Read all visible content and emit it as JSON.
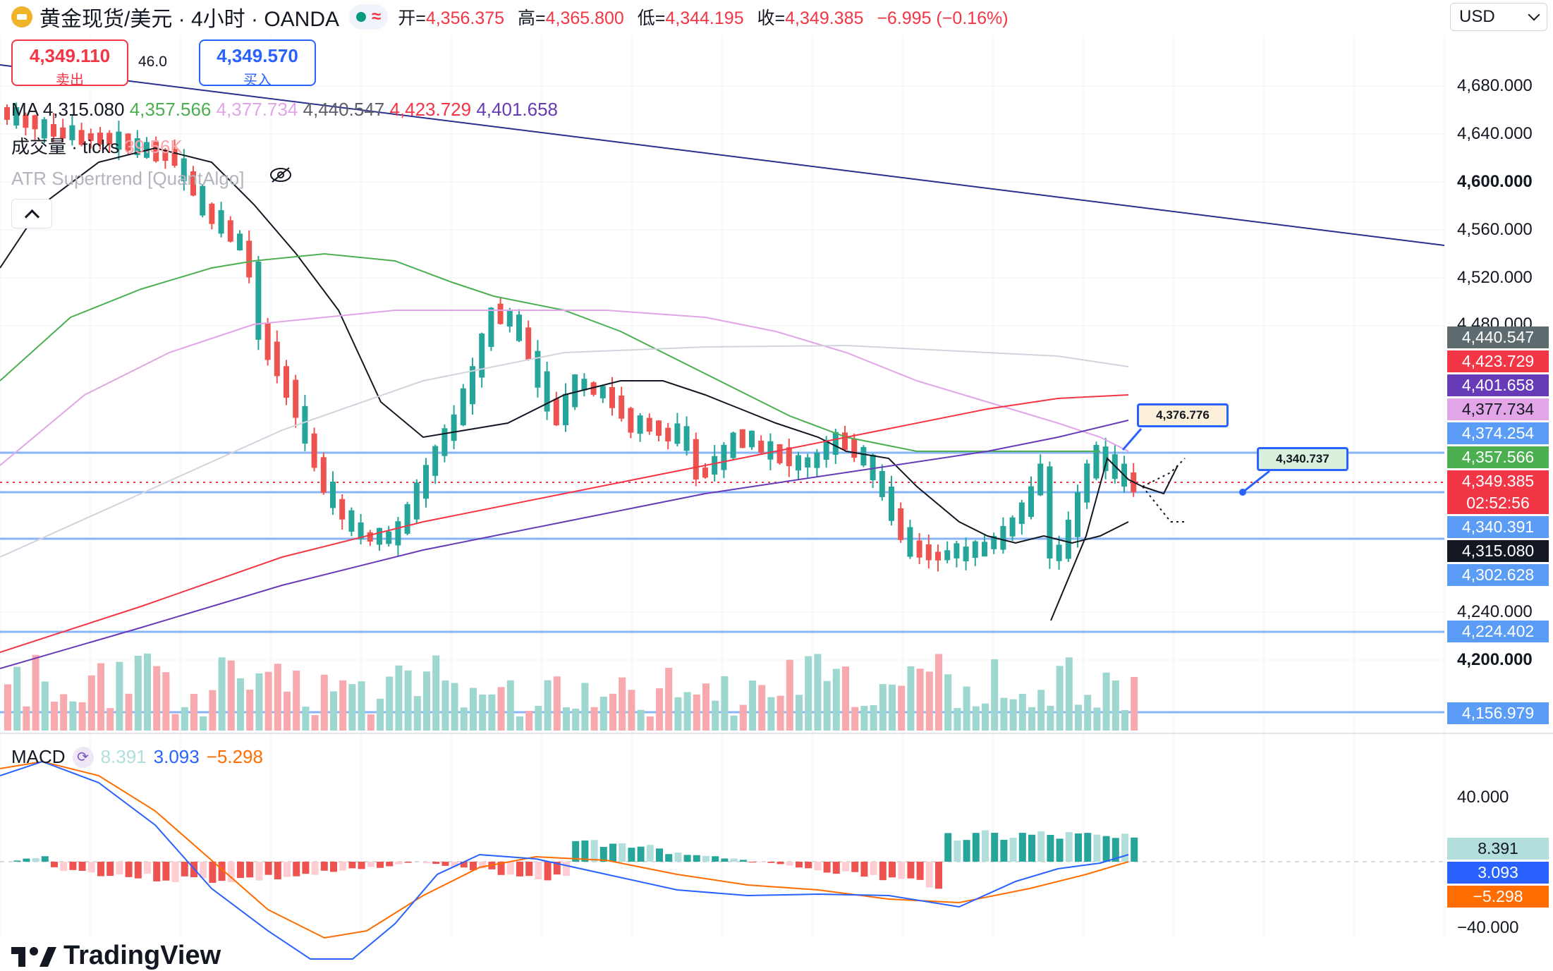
{
  "header": {
    "title": "黄金现货/美元 · 4小时 · OANDA",
    "ohlc": [
      {
        "k": "开=",
        "v": "4,356.375"
      },
      {
        "k": "高=",
        "v": "4,365.800"
      },
      {
        "k": "低=",
        "v": "4,344.195"
      },
      {
        "k": "收=",
        "v": "4,349.385"
      }
    ],
    "change": "−6.995 (−0.16%)"
  },
  "currency": "USD",
  "trade": {
    "sell_price": "4,349.110",
    "sell_label": "卖出",
    "spread": "46.0",
    "buy_price": "4,349.570",
    "buy_label": "买入"
  },
  "legend": {
    "ma_label": "MA",
    "ma_values": [
      "4,315.080",
      "4,357.566",
      "4,377.734",
      "4,440.547",
      "4,423.729",
      "4,401.658"
    ],
    "ma_colors": [
      "#131722",
      "#4caf50",
      "#e1a5e8",
      "#5d606b",
      "#f23645",
      "#673ab7"
    ],
    "volume_label": "成交量 · ticks",
    "volume_value": "39.56K",
    "atr_label": "ATR Supertrend [QuantAlgo]"
  },
  "price_axis": [
    "4,680.000",
    "4,640.000",
    "4,600.000",
    "4,560.000",
    "4,520.000",
    "4,480.000",
    "4,240.000",
    "4,200.000"
  ],
  "price_tags": [
    {
      "text": "4,440.547",
      "color": "#5d6b6f"
    },
    {
      "text": "4,423.729",
      "color": "#f23645"
    },
    {
      "text": "4,401.658",
      "color": "#673ab7"
    },
    {
      "text": "4,377.734",
      "color": "#e1a5e8"
    },
    {
      "text": "4,374.254",
      "color": "#5b9cf6"
    },
    {
      "text": "4,357.566",
      "color": "#4caf50"
    },
    {
      "text": "4,349.385",
      "color": "#f23645"
    },
    {
      "text": "02:52:56",
      "color": "#f23645"
    },
    {
      "text": "4,340.391",
      "color": "#5b9cf6"
    },
    {
      "text": "4,315.080",
      "color": "#131722"
    },
    {
      "text": "4,302.628",
      "color": "#5b9cf6"
    },
    {
      "text": "4,224.402",
      "color": "#5b9cf6"
    },
    {
      "text": "4,156.979",
      "color": "#5b9cf6"
    }
  ],
  "callouts": [
    "4,376.776",
    "4,340.737"
  ],
  "macd": {
    "label": "MACD",
    "hist": "8.391",
    "macd": "3.093",
    "signal": "−5.298",
    "axis": [
      "40.000",
      "−40.000"
    ],
    "tags": [
      {
        "text": "8.391",
        "color": "#b2dfdb"
      },
      {
        "text": "3.093",
        "color": "#2962ff"
      },
      {
        "text": "−5.298",
        "color": "#ff6d00"
      }
    ]
  },
  "logo": "TradingView"
}
